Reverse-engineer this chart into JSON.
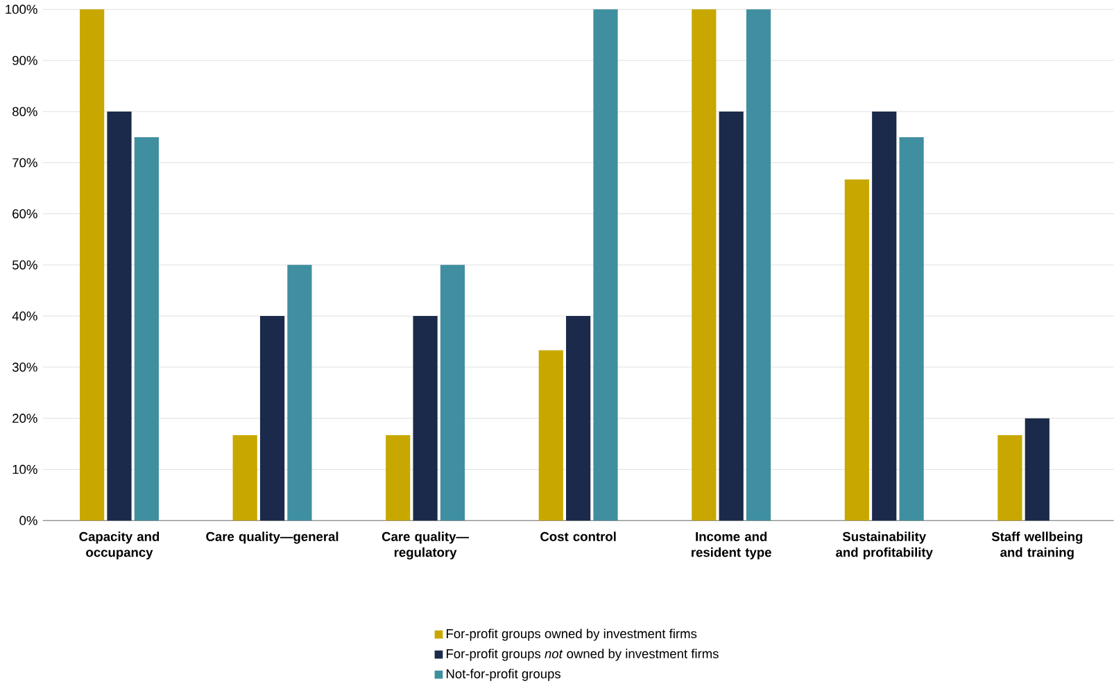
{
  "chart_data": {
    "type": "bar",
    "categories": [
      "Capacity and occupancy",
      "Care quality—general",
      "Care quality—regulatory",
      "Cost control",
      "Income and resident type",
      "Sustainability and profitability",
      "Staff wellbeing and training"
    ],
    "series": [
      {
        "name": "For-profit groups owned by investment firms",
        "color": "#c8a800",
        "values": [
          100,
          16.7,
          16.7,
          33.3,
          100,
          66.7,
          16.7
        ]
      },
      {
        "name": "For-profit groups *not* owned by investment firms",
        "color": "#1b2a4a",
        "values": [
          80,
          40,
          40,
          40,
          80,
          80,
          20
        ]
      },
      {
        "name": "Not-for-profit groups",
        "color": "#408fa0",
        "values": [
          75,
          50,
          50,
          100,
          100,
          75,
          0
        ]
      }
    ],
    "ylim": [
      0,
      100
    ],
    "yticks": [
      {
        "value": 0,
        "label": "0%"
      },
      {
        "value": 10,
        "label": "10%"
      },
      {
        "value": 20,
        "label": "20%"
      },
      {
        "value": 30,
        "label": "30%"
      },
      {
        "value": 40,
        "label": "40%"
      },
      {
        "value": 50,
        "label": "50%"
      },
      {
        "value": 60,
        "label": "60%"
      },
      {
        "value": 70,
        "label": "70%"
      },
      {
        "value": 80,
        "label": "80%"
      },
      {
        "value": 90,
        "label": "90%"
      },
      {
        "value": 100,
        "label": "100%"
      }
    ],
    "grid": "y",
    "legend": "bottom"
  }
}
